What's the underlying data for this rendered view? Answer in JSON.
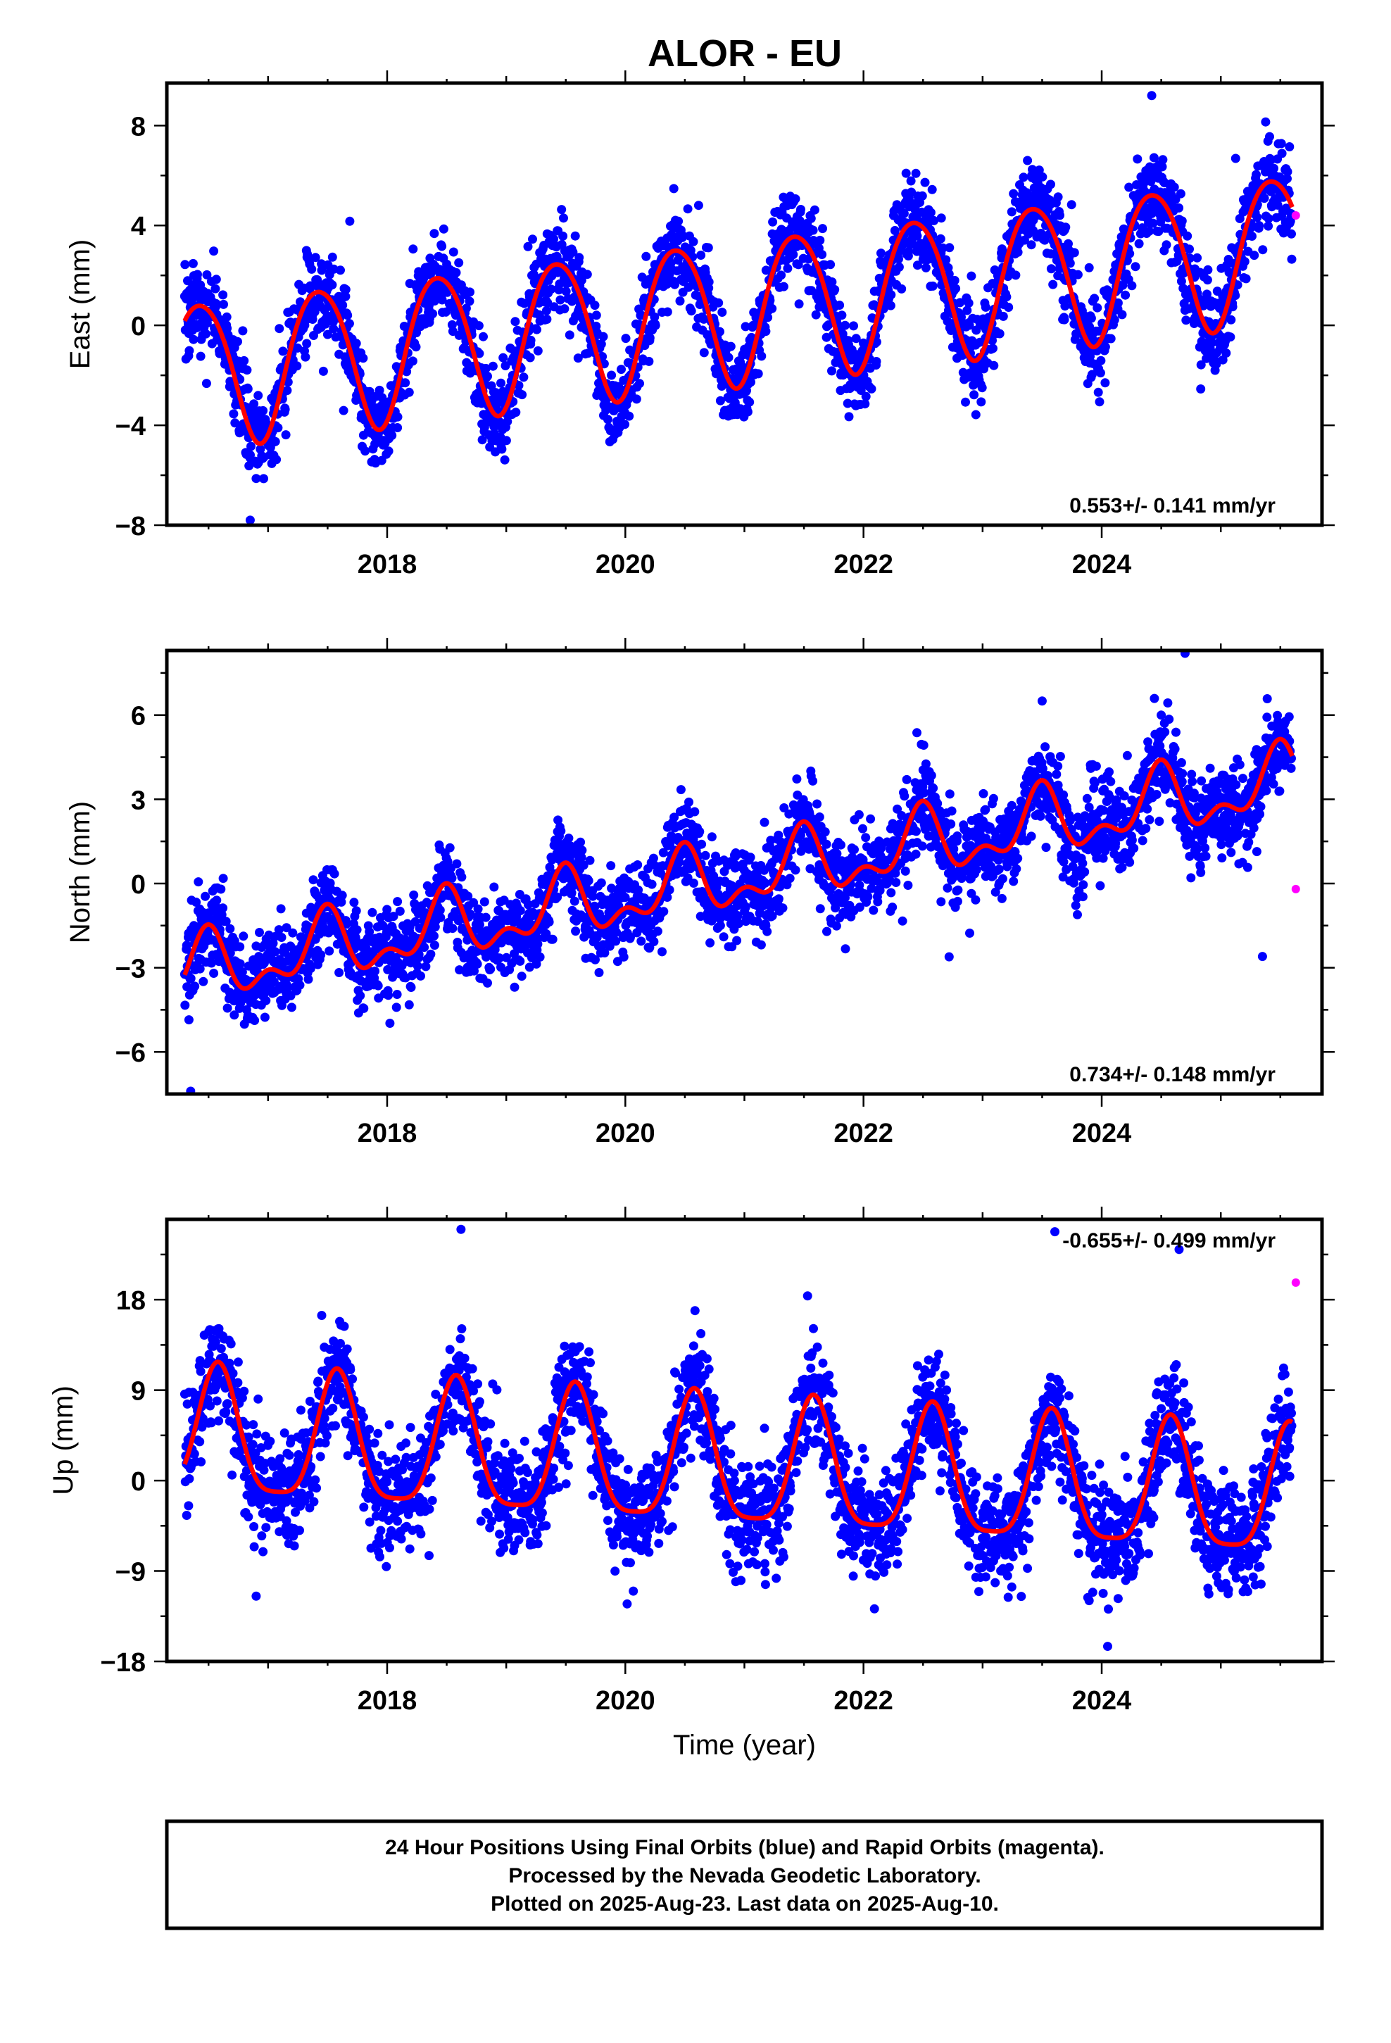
{
  "title": "ALOR - EU",
  "colors": {
    "final": "#0000ff",
    "rapid": "#ff00ff",
    "fit": "#ff0000"
  },
  "chart_data": [
    {
      "type": "scatter",
      "ylabel": "East (mm)",
      "xlabel": "",
      "xlim": [
        2016.15,
        2025.85
      ],
      "ylim": [
        -8,
        9.7
      ],
      "xticks": [
        "2018",
        "2020",
        "2022",
        "2024"
      ],
      "yticks": [
        "8",
        "4",
        "0",
        "-4",
        "-8"
      ],
      "rate": "0.553+/- 0.141 mm/yr",
      "rate_position": "bottom-right",
      "model": {
        "start": 2016.3,
        "end": 2025.6,
        "offset": -1.9,
        "trend": 0.553,
        "annual": 2.9,
        "annual_peak": 0.43,
        "semiannual": 0.3,
        "semiannual_peak": 0.2,
        "noise": 0.9
      },
      "outliers": [
        {
          "x": 2024.42,
          "y": 9.2
        },
        {
          "x": 2016.85,
          "y": -7.8
        }
      ],
      "rapid": [
        {
          "x": 2025.63,
          "y": 4.4
        }
      ]
    },
    {
      "type": "scatter",
      "ylabel": "North (mm)",
      "xlabel": "",
      "xlim": [
        2016.15,
        2025.85
      ],
      "ylim": [
        -7.5,
        8.3
      ],
      "xticks": [
        "2018",
        "2020",
        "2022",
        "2024"
      ],
      "yticks": [
        "6",
        "3",
        "0",
        "-3",
        "-6"
      ],
      "rate": "0.734+/- 0.148 mm/yr",
      "rate_position": "bottom-right",
      "model": {
        "start": 2016.3,
        "end": 2025.6,
        "offset": -3.2,
        "trend": 0.734,
        "annual": 1.0,
        "annual_peak": 0.48,
        "semiannual": 0.6,
        "semiannual_peak": 0.0,
        "noise": 0.8
      },
      "outliers": [
        {
          "x": 2024.7,
          "y": 8.2
        },
        {
          "x": 2023.5,
          "y": 6.5
        },
        {
          "x": 2016.35,
          "y": -7.4
        },
        {
          "x": 2025.35,
          "y": -2.6
        }
      ],
      "rapid": [
        {
          "x": 2025.63,
          "y": -0.2
        }
      ]
    },
    {
      "type": "scatter",
      "ylabel": "Up (mm)",
      "xlabel": "Time (year)",
      "xlim": [
        2016.15,
        2025.85
      ],
      "ylim": [
        -18,
        26
      ],
      "xticks": [
        "2018",
        "2020",
        "2022",
        "2024"
      ],
      "yticks": [
        "18",
        "9",
        "0",
        "-9",
        "-18"
      ],
      "rate": "-0.655+/- 0.499 mm/yr",
      "rate_position": "top-right",
      "model": {
        "start": 2016.3,
        "end": 2025.6,
        "offset": 4.2,
        "trend": -0.655,
        "annual": 6.3,
        "annual_peak": 0.58,
        "semiannual": 1.5,
        "semiannual_peak": 0.08,
        "noise": 2.7
      },
      "outliers": [
        {
          "x": 2018.62,
          "y": 25.0
        },
        {
          "x": 2024.65,
          "y": 23.0
        },
        {
          "x": 2016.9,
          "y": -11.5
        },
        {
          "x": 2024.05,
          "y": -16.5
        }
      ],
      "rapid": [
        {
          "x": 2025.63,
          "y": 19.7
        }
      ]
    }
  ],
  "footer": {
    "line1": "24 Hour Positions Using Final Orbits (blue) and Rapid Orbits (magenta).",
    "line2": "Processed by the Nevada Geodetic Laboratory.",
    "line3": "Plotted on 2025-Aug-23. Last data on 2025-Aug-10."
  }
}
